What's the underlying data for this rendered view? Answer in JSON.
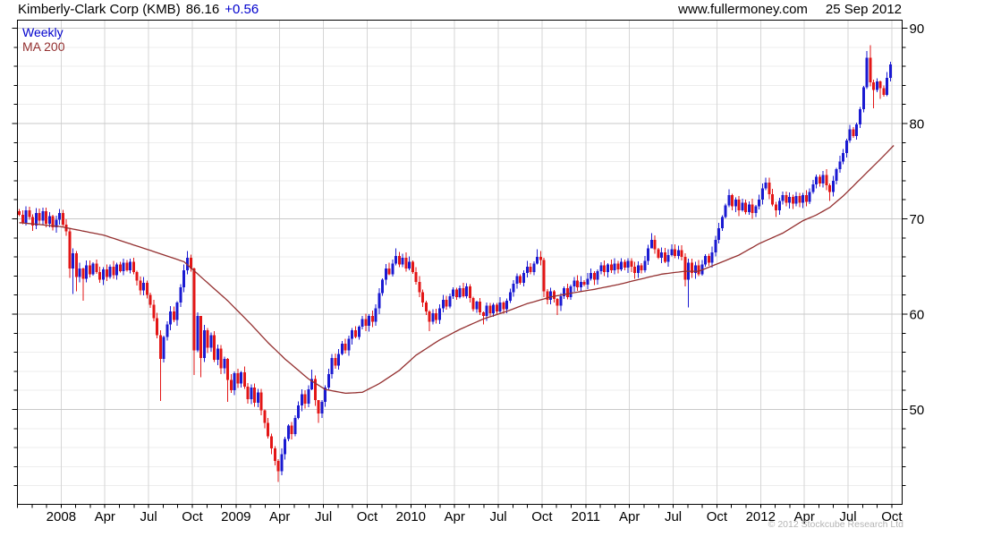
{
  "header": {
    "instrument": "Kimberly-Clark Corp (KMB)",
    "last_price": "86.16",
    "change": "+0.56",
    "website": "www.fullermoney.com",
    "date": "25 Sep 2012"
  },
  "legend": {
    "series": "Weekly",
    "ma": "MA 200"
  },
  "footer": {
    "copyright": "© 2012 Stockcube Research Ltd"
  },
  "colors": {
    "up": "#1a1ad2",
    "down": "#e31616",
    "ma": "#943030",
    "grid_major": "#c9c9c9",
    "grid_minor": "#ededed",
    "grid_vertical": "#d6d6d6",
    "axis": "#000000",
    "label": "#000000",
    "change_text": "#0000cd",
    "copyright_text": "#b4b4b4"
  },
  "chart_data": {
    "type": "candlestick",
    "interval": "weekly",
    "instrument": "Kimberly-Clark Corp (KMB)",
    "last_close": 86.16,
    "change": 0.56,
    "overlay": "MA 200",
    "y_axis": {
      "min": 40,
      "max": 90.9,
      "tick_step": 2,
      "label_step": 10,
      "labels": [
        90,
        80,
        70,
        60,
        50
      ]
    },
    "x_axis": {
      "start_month": "Oct 2007",
      "end_month": "Oct 2012",
      "months_total": 60,
      "quarter_labels": [
        "2008",
        "Apr",
        "Jul",
        "Oct",
        "2009",
        "Apr",
        "Jul",
        "Oct",
        "2010",
        "Apr",
        "Jul",
        "Oct",
        "2011",
        "Apr",
        "Jul",
        "Oct",
        "2012",
        "Apr",
        "Jul",
        "Oct"
      ]
    },
    "first_open": 70.8,
    "weekly_closes": [
      70.4,
      69.6,
      70.9,
      70.2,
      69.3,
      70.6,
      69.8,
      70.8,
      69.5,
      70.3,
      69.1,
      69.9,
      70.6,
      69.4,
      68.7,
      64.8,
      66.4,
      63.9,
      64.8,
      63.7,
      65.1,
      64.2,
      65.3,
      64.4,
      63.6,
      64.7,
      63.9,
      65.0,
      64.1,
      65.2,
      64.5,
      65.4,
      64.6,
      65.5,
      64.4,
      63.5,
      62.5,
      63.3,
      62.0,
      61.0,
      59.6,
      57.8,
      55.3,
      57.6,
      58.9,
      60.3,
      59.4,
      61.2,
      62.8,
      64.6,
      65.9,
      64.8,
      56.2,
      59.8,
      55.4,
      58.3,
      56.5,
      57.8,
      55.2,
      56.4,
      54.3,
      55.3,
      53.1,
      52.0,
      53.8,
      52.7,
      53.9,
      52.4,
      51.1,
      52.3,
      50.7,
      51.8,
      49.9,
      48.6,
      47.2,
      45.9,
      44.6,
      43.5,
      45.3,
      46.9,
      48.3,
      47.4,
      49.1,
      50.4,
      51.6,
      50.6,
      52.1,
      53.2,
      51.0,
      49.6,
      50.8,
      52.3,
      53.7,
      55.4,
      54.6,
      55.8,
      56.9,
      56.2,
      57.4,
      58.3,
      57.6,
      58.7,
      59.5,
      58.8,
      59.8,
      59.2,
      60.6,
      62.2,
      63.6,
      64.8,
      64.2,
      65.3,
      66.1,
      65.2,
      65.9,
      64.8,
      65.5,
      64.4,
      63.4,
      62.3,
      61.2,
      60.3,
      59.2,
      60.1,
      59.4,
      60.6,
      61.5,
      60.8,
      61.9,
      62.6,
      61.8,
      62.7,
      61.9,
      62.9,
      61.7,
      60.5,
      61.3,
      60.2,
      59.8,
      60.9,
      60.1,
      61.0,
      60.3,
      61.2,
      60.5,
      61.4,
      62.3,
      63.2,
      64.0,
      63.3,
      64.3,
      65.0,
      64.4,
      65.3,
      66.0,
      65.7,
      62.4,
      61.5,
      62.4,
      61.6,
      60.9,
      61.9,
      62.7,
      61.8,
      62.9,
      63.5,
      62.8,
      63.4,
      63.1,
      63.7,
      64.3,
      63.6,
      64.5,
      65.1,
      64.4,
      65.2,
      64.6,
      65.3,
      64.7,
      65.5,
      64.9,
      65.6,
      65.0,
      64.3,
      65.1,
      64.6,
      65.6,
      66.9,
      67.8,
      66.8,
      65.9,
      66.5,
      65.5,
      66.2,
      66.8,
      66.1,
      66.7,
      66.0,
      63.6,
      65.4,
      64.3,
      65.1,
      64.2,
      65.2,
      66.1,
      65.4,
      66.5,
      67.8,
      69.0,
      70.2,
      71.4,
      72.5,
      71.3,
      72.0,
      70.9,
      71.7,
      70.7,
      71.5,
      70.6,
      71.3,
      72.0,
      73.2,
      73.8,
      72.6,
      71.5,
      70.9,
      71.9,
      72.5,
      71.7,
      72.3,
      71.6,
      72.4,
      71.7,
      72.5,
      71.8,
      72.8,
      73.6,
      74.4,
      73.7,
      74.6,
      73.5,
      72.8,
      74.0,
      75.2,
      76.0,
      76.9,
      78.2,
      79.4,
      78.7,
      79.9,
      81.5,
      83.8,
      86.9,
      84.3,
      83.5,
      84.4,
      83.7,
      83.0,
      84.8,
      86.2
    ],
    "wick_overrides": {
      "15": [
        69.0,
        63.8
      ],
      "16": [
        66.9,
        62.1
      ],
      "17": [
        66.6,
        62.4
      ],
      "19": [
        64.9,
        61.4
      ],
      "42": [
        58.3,
        50.9
      ],
      "50": [
        66.6,
        64.2
      ],
      "52": [
        64.9,
        53.6
      ],
      "54": [
        58.5,
        53.4
      ],
      "62": [
        55.4,
        50.8
      ],
      "77": [
        44.8,
        42.4
      ],
      "87": [
        54.2,
        52.0
      ],
      "89": [
        51.0,
        48.6
      ],
      "112": [
        66.9,
        65.1
      ],
      "122": [
        60.4,
        58.2
      ],
      "138": [
        60.3,
        58.9
      ],
      "154": [
        66.8,
        65.2
      ],
      "156": [
        65.9,
        61.8
      ],
      "160": [
        61.7,
        59.9
      ],
      "188": [
        68.5,
        66.9
      ],
      "198": [
        66.4,
        62.9
      ],
      "199": [
        65.8,
        60.7
      ],
      "211": [
        73.1,
        71.2
      ],
      "222": [
        74.3,
        73.0
      ],
      "225": [
        71.8,
        70.2
      ],
      "241": [
        73.7,
        71.9
      ],
      "252": [
        87.6,
        83.6
      ],
      "253": [
        88.2,
        83.9
      ],
      "254": [
        84.6,
        81.6
      ],
      "256": [
        84.5,
        82.6
      ],
      "259": [
        86.5,
        84.4
      ]
    },
    "ma_200": {
      "weeks": [
        0,
        12,
        25,
        38,
        49,
        55,
        62,
        69,
        74,
        79,
        86,
        91,
        97,
        102,
        107,
        113,
        118,
        125,
        131,
        138,
        145,
        151,
        158,
        164,
        171,
        178,
        185,
        191,
        198,
        202,
        207,
        214,
        220,
        227,
        233,
        237,
        241,
        245,
        249,
        253,
        257,
        260
      ],
      "values": [
        69.6,
        69.2,
        68.3,
        66.8,
        65.5,
        63.6,
        61.4,
        58.9,
        57.0,
        55.3,
        53.2,
        52.1,
        51.7,
        51.8,
        52.7,
        54.1,
        55.7,
        57.3,
        58.4,
        59.5,
        60.3,
        61.1,
        61.8,
        62.2,
        62.6,
        63.1,
        63.7,
        64.2,
        64.5,
        64.5,
        65.2,
        66.2,
        67.4,
        68.5,
        69.8,
        70.4,
        71.2,
        72.4,
        73.8,
        75.2,
        76.6,
        77.7
      ]
    }
  }
}
